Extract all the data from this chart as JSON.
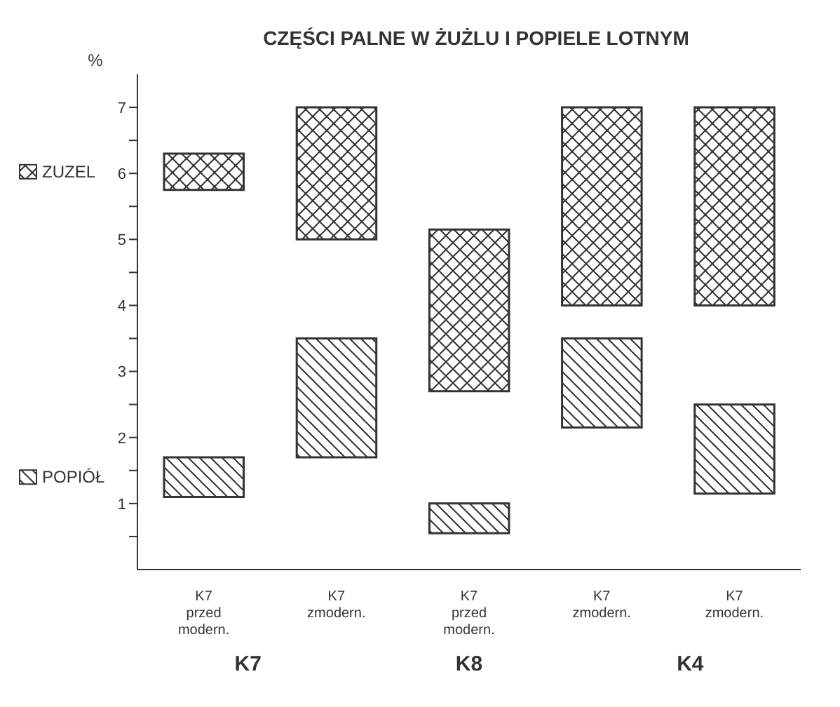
{
  "chart_data": {
    "type": "bar",
    "title": "CZĘŚCI PALNE W ŻUŻLU I POPIELE LOTNYM",
    "ylabel": "%",
    "categories": [
      "K7\nprzed\nmodern.",
      "K7\nzmodern.",
      "K7\nprzed\nmodern.",
      "K7\nzmodern.",
      "K7\nzmodern."
    ],
    "series": [
      {
        "name": "ZUZEL",
        "color": "#333333",
        "base": [
          5.75,
          5.0,
          2.7,
          4.0,
          4.0
        ],
        "values": [
          0.55,
          2.0,
          2.45,
          3.0,
          3.0
        ]
      },
      {
        "name": "POPIÓŁ",
        "color": "#333333",
        "base": [
          1.1,
          1.7,
          0.55,
          2.15,
          1.15
        ],
        "values": [
          0.6,
          1.8,
          0.45,
          1.35,
          1.35
        ]
      }
    ],
    "annotations": [
      "K7",
      "K8",
      "K4"
    ],
    "ylim": [
      0,
      7.5
    ],
    "yticks": [
      {
        "value": 0.5,
        "label": null
      },
      1,
      {
        "value": 1.5,
        "label": null
      },
      2,
      {
        "value": 2.5,
        "label": null
      },
      3,
      {
        "value": 3.5,
        "label": null
      },
      4,
      {
        "value": 4.5,
        "label": null
      },
      5,
      {
        "value": 5.5,
        "label": null
      },
      6,
      {
        "value": 6.5,
        "label": null
      },
      7
    ],
    "grid": false,
    "legend": "left"
  }
}
